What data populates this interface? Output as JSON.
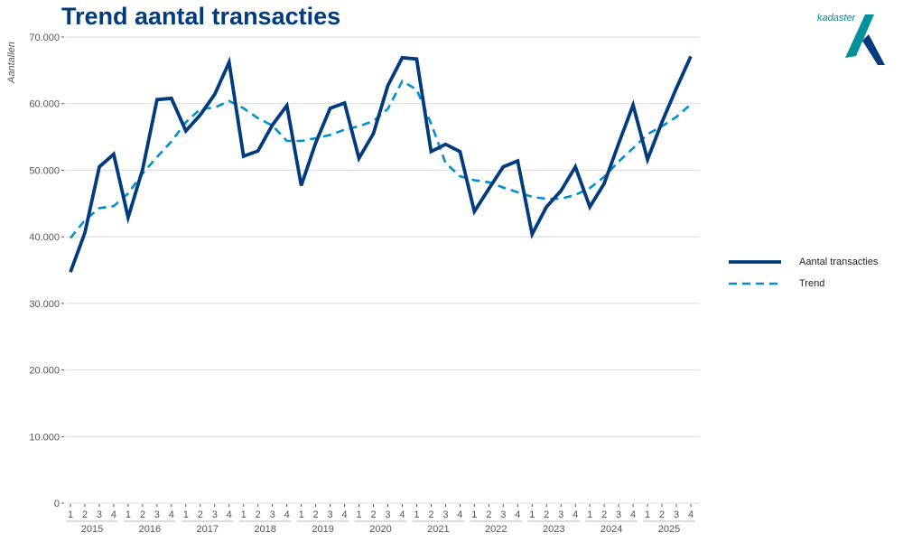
{
  "title": "Trend aantal transacties",
  "logo_text": "kadaster",
  "colors": {
    "title": "#003b7e",
    "series_main": "#003b7e",
    "series_trend": "#0090cf",
    "grid": "#d9d9d9",
    "logo_teal": "#00919a",
    "logo_blue": "#003b7e"
  },
  "chart_data": {
    "type": "line",
    "title": "Trend aantal transacties",
    "ylabel": "Aantallen",
    "xlabel": "",
    "ylim": [
      0,
      70000
    ],
    "yticks": [
      0,
      10000,
      20000,
      30000,
      40000,
      50000,
      60000,
      70000
    ],
    "ytick_labels": [
      "0",
      "10.000",
      "20.000",
      "30.000",
      "40.000",
      "50.000",
      "60.000",
      "70.000"
    ],
    "years": [
      "2015",
      "2016",
      "2017",
      "2018",
      "2019",
      "2020",
      "2021",
      "2022",
      "2023",
      "2024",
      "2025"
    ],
    "quarters": [
      "1",
      "2",
      "3",
      "4"
    ],
    "grid": true,
    "legend_position": "right",
    "series": [
      {
        "name": "Aantal transacties",
        "style": "solid",
        "values": [
          34700,
          40600,
          50500,
          52400,
          42900,
          50100,
          60600,
          60800,
          55900,
          58300,
          61400,
          66200,
          52100,
          52900,
          56800,
          59700,
          47700,
          54100,
          59300,
          60100,
          51800,
          55500,
          62700,
          66900,
          66700,
          52800,
          53900,
          52800,
          43800,
          47200,
          50500,
          51400,
          40400,
          44500,
          46900,
          50500,
          44500,
          48000,
          54000,
          59800,
          51600,
          57200,
          62300,
          67100
        ]
      },
      {
        "name": "Trend",
        "style": "dashed",
        "values": [
          39800,
          42500,
          44300,
          44600,
          46500,
          49500,
          52000,
          54300,
          57200,
          59200,
          59400,
          60400,
          59300,
          57800,
          56700,
          54400,
          54400,
          54800,
          55300,
          56100,
          56600,
          57400,
          59200,
          63400,
          62100,
          57000,
          51100,
          49100,
          48500,
          48200,
          47400,
          46700,
          46000,
          45700,
          45700,
          46300,
          47300,
          49000,
          51300,
          53300,
          55400,
          56600,
          58000,
          59900
        ]
      }
    ]
  }
}
